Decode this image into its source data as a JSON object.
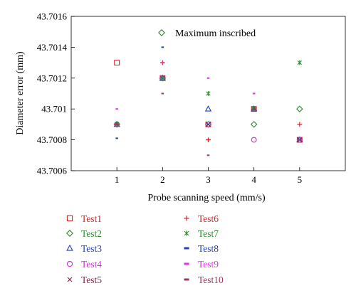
{
  "chart_data": {
    "type": "scatter",
    "title": "",
    "xlabel": "Probe scanning speed (mm/s)",
    "ylabel": "Diameter error (mm)",
    "xlim": [
      0,
      6
    ],
    "ylim": [
      43.7006,
      43.7016
    ],
    "xticks": [
      "1",
      "2",
      "3",
      "4",
      "5"
    ],
    "yticks": [
      "43.7006",
      "43.7008",
      "43.701",
      "43.7012",
      "43.7014",
      "43.7016"
    ],
    "grid": false,
    "annotations": [
      {
        "text": "Maximum inscribed",
        "marker": "diamond",
        "color": "#2e8b2e"
      }
    ],
    "series": [
      {
        "name": "Test1",
        "marker": "square",
        "color": "#d62728",
        "x": [
          1,
          2,
          3,
          4,
          5
        ],
        "y": [
          43.7013,
          43.7012,
          43.7009,
          43.701,
          43.7008
        ]
      },
      {
        "name": "Test2",
        "marker": "diamond",
        "color": "#2e8b2e",
        "x": [
          1,
          2,
          3,
          4,
          5
        ],
        "y": [
          43.7009,
          43.7012,
          43.7009,
          43.7009,
          43.701
        ]
      },
      {
        "name": "Test3",
        "marker": "triangle",
        "color": "#1f3fbf",
        "x": [
          1,
          2,
          3,
          4,
          5
        ],
        "y": [
          43.7009,
          43.7012,
          43.701,
          43.701,
          43.7008
        ]
      },
      {
        "name": "Test4",
        "marker": "circle",
        "color": "#d62bd6",
        "x": [
          1,
          2,
          3,
          4,
          5
        ],
        "y": [
          43.7009,
          43.7012,
          43.7009,
          43.7008,
          43.7008
        ]
      },
      {
        "name": "Test5",
        "marker": "x",
        "color": "#8b2252",
        "x": [
          1,
          2,
          3,
          4,
          5
        ],
        "y": [
          43.7009,
          43.7012,
          43.7009,
          43.701,
          43.7008
        ]
      },
      {
        "name": "Test6",
        "marker": "plus",
        "color": "#d62728",
        "x": [
          1,
          2,
          3,
          4,
          5
        ],
        "y": [
          43.7009,
          43.7013,
          43.7008,
          43.701,
          43.7009
        ]
      },
      {
        "name": "Test7",
        "marker": "asterisk",
        "color": "#2e8b2e",
        "x": [
          1,
          2,
          3,
          4,
          5
        ],
        "y": [
          43.7009,
          43.7012,
          43.7011,
          43.701,
          43.7013
        ]
      },
      {
        "name": "Test8",
        "marker": "dash",
        "color": "#1f3fbf",
        "x": [
          1,
          2,
          3,
          4,
          5
        ],
        "y": [
          43.70081,
          43.7014,
          43.7009,
          43.701,
          43.7008
        ]
      },
      {
        "name": "Test9",
        "marker": "dash",
        "color": "#e62ee6",
        "x": [
          1,
          2,
          3,
          4,
          5
        ],
        "y": [
          43.701,
          43.7013,
          43.7012,
          43.7011,
          43.7008
        ]
      },
      {
        "name": "Test10",
        "marker": "dash",
        "color": "#9b3a5a",
        "x": [
          1,
          2,
          3,
          4,
          5
        ],
        "y": [
          43.7009,
          43.7011,
          43.7007,
          43.701,
          43.7008
        ]
      }
    ]
  }
}
